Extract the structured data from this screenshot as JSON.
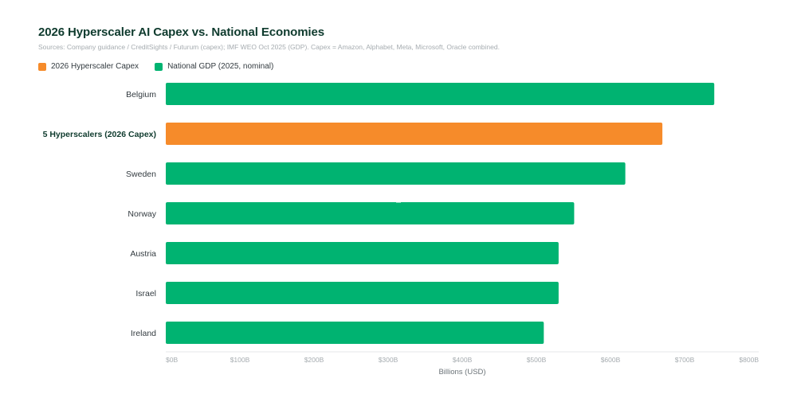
{
  "header": {
    "title": "2026 Hyperscaler AI Capex vs. National Economies",
    "subtitle": "Sources: Company guidance / CreditSights / Futurum (capex); IMF WEO Oct 2025 (GDP). Capex = Amazon, Alphabet, Meta, Microsoft, Oracle combined."
  },
  "legend": [
    {
      "label": "2026 Hyperscaler Capex",
      "color": "#f68b2a"
    },
    {
      "label": "National GDP (2025, nominal)",
      "color": "#00b371"
    }
  ],
  "chart_data": {
    "type": "bar",
    "orientation": "horizontal",
    "title": "2026 Hyperscaler AI Capex vs. National Economies",
    "xlabel": "Billions (USD)",
    "ylabel": "",
    "xlim": [
      0,
      800
    ],
    "ticks": [
      0,
      100,
      200,
      300,
      400,
      500,
      600,
      700,
      800
    ],
    "tick_labels": [
      "$0B",
      "$100B",
      "$200B",
      "$300B",
      "$400B",
      "$500B",
      "$600B",
      "$700B",
      "$800B"
    ],
    "grid": false,
    "legend_position": "top-left",
    "categories": [
      "Belgium",
      "5 Hyperscalers (2026 Capex)",
      "Sweden",
      "Norway",
      "Austria",
      "Israel",
      "Ireland"
    ],
    "values": [
      740,
      670,
      620,
      551,
      530,
      530,
      510
    ],
    "series_membership": [
      "National GDP (2025, nominal)",
      "2026 Hyperscaler Capex",
      "National GDP (2025, nominal)",
      "National GDP (2025, nominal)",
      "National GDP (2025, nominal)",
      "National GDP (2025, nominal)",
      "National GDP (2025, nominal)"
    ],
    "highlight": [
      false,
      true,
      false,
      false,
      false,
      false,
      false
    ],
    "colors": {
      "gdp": "#00b371",
      "capex": "#f68b2a"
    }
  }
}
